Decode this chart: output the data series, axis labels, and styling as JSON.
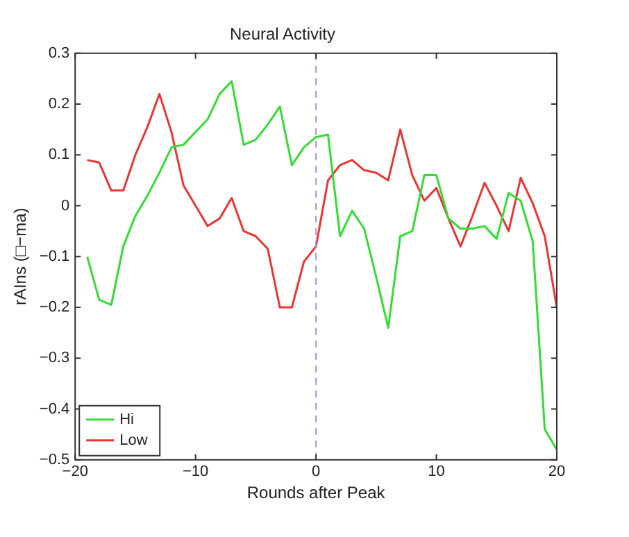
{
  "chart_data": {
    "type": "line",
    "title": "Neural Activity",
    "xlabel": "Rounds after Peak",
    "ylabel": "rAIns (□−ma)",
    "x": [
      -19,
      -18,
      -17,
      -16,
      -15,
      -14,
      -13,
      -12,
      -11,
      -10,
      -9,
      -8,
      -7,
      -6,
      -5,
      -4,
      -3,
      -2,
      -1,
      0,
      1,
      2,
      3,
      4,
      5,
      6,
      7,
      8,
      9,
      10,
      11,
      12,
      13,
      14,
      15,
      16,
      17,
      18,
      19,
      20
    ],
    "series": [
      {
        "name": "Hi",
        "color": "#33dd33",
        "values": [
          -0.1,
          -0.185,
          -0.195,
          -0.08,
          -0.02,
          0.02,
          0.065,
          0.115,
          0.12,
          0.145,
          0.17,
          0.22,
          0.245,
          0.12,
          0.13,
          0.16,
          0.195,
          0.08,
          0.115,
          0.135,
          0.14,
          -0.06,
          -0.01,
          -0.045,
          -0.14,
          -0.24,
          -0.06,
          -0.05,
          0.06,
          0.06,
          -0.025,
          -0.045,
          -0.045,
          -0.04,
          -0.065,
          0.025,
          0.01,
          -0.07,
          -0.44,
          -0.48
        ]
      },
      {
        "name": "Low",
        "color": "#ee3333",
        "values": [
          0.09,
          0.085,
          0.03,
          0.03,
          0.1,
          0.155,
          0.22,
          0.145,
          0.04,
          0,
          -0.04,
          -0.025,
          0.015,
          -0.05,
          -0.06,
          -0.085,
          -0.2,
          -0.2,
          -0.11,
          -0.08,
          0.05,
          0.08,
          0.09,
          0.07,
          0.065,
          0.05,
          0.15,
          0.06,
          0.01,
          0.035,
          -0.025,
          -0.08,
          -0.02,
          0.045,
          0,
          -0.05,
          0.055,
          0.005,
          -0.06,
          -0.2
        ]
      }
    ],
    "xlim": [
      -20,
      20
    ],
    "xticks": [
      -20,
      -10,
      0,
      10,
      20
    ],
    "ylim": [
      -0.5,
      0.3
    ],
    "yticks": [
      -0.5,
      -0.4,
      -0.3,
      -0.2,
      -0.1,
      0,
      0.1,
      0.2,
      0.3
    ],
    "ref_lines": [
      {
        "axis": "x",
        "value": 0,
        "color": "#9999ee",
        "line_style": "dashed"
      }
    ],
    "legend": "bottom left",
    "grid": false,
    "marker": "none",
    "line_style": "solid"
  }
}
